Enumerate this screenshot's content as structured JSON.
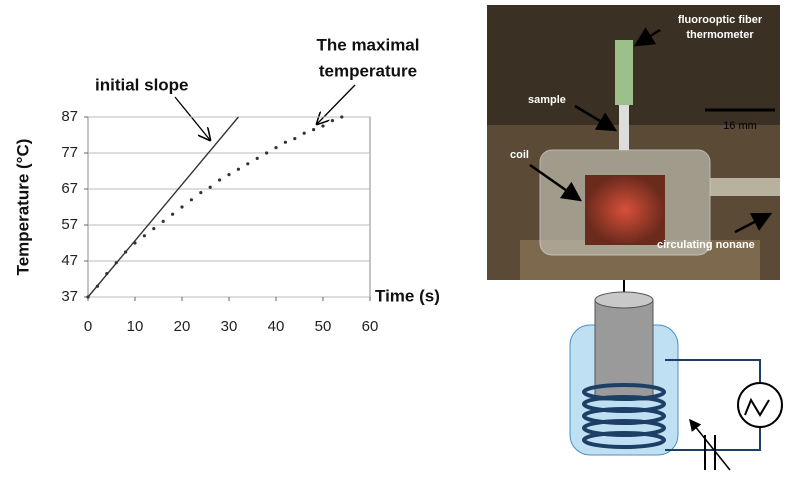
{
  "chart_data": {
    "type": "line",
    "xlabel": "Time (s)",
    "ylabel": "Temperature (°C)",
    "xlim": [
      0,
      60
    ],
    "xticks": [
      0,
      10,
      20,
      30,
      40,
      50,
      60
    ],
    "ylim": [
      37,
      87
    ],
    "yticks": [
      37,
      47,
      57,
      67,
      77,
      87
    ],
    "grid": true,
    "series": [
      {
        "style": "dotted",
        "color": "#333333",
        "x": [
          0,
          2,
          4,
          6,
          8,
          10,
          12,
          14,
          16,
          18,
          20,
          22,
          24,
          26,
          28,
          30,
          32,
          34,
          36,
          38,
          40,
          42,
          44,
          46,
          48,
          50,
          52,
          54
        ],
        "values": [
          37,
          40,
          43.5,
          46.5,
          49.5,
          52,
          54,
          56,
          58,
          60,
          62,
          64,
          66,
          67.5,
          69.5,
          71,
          72.5,
          74,
          75.5,
          77,
          78.5,
          80,
          81,
          82.5,
          83.5,
          84.5,
          86,
          87
        ]
      },
      {
        "style": "solid",
        "color": "#333333",
        "x": [
          0,
          32
        ],
        "values": [
          37,
          87
        ]
      }
    ],
    "annotations": [
      "initial slope",
      "The maximal",
      "temperature"
    ]
  },
  "photo": {
    "labels": [
      "fluorooptic fiber",
      "thermometer",
      "sample",
      "16 mm",
      "coil",
      "circulating nonane"
    ]
  }
}
